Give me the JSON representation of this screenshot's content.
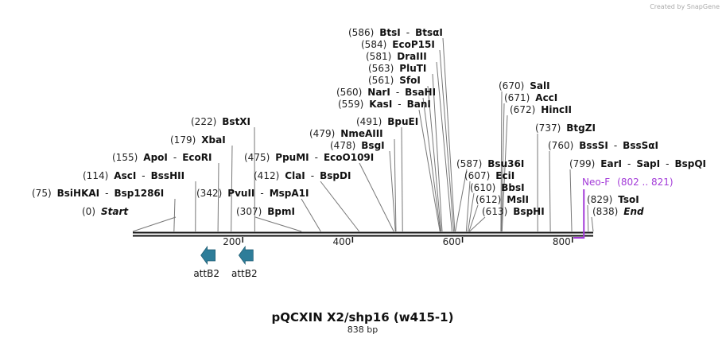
{
  "credit": "Created by SnapGene",
  "map": {
    "title": "pQCXIN X2/shp16 (w415-1)",
    "length_label": "838 bp",
    "length_bp": 838,
    "ticks": [
      "200",
      "400",
      "600",
      "800"
    ]
  },
  "sites": [
    {
      "pos": "(586)",
      "names": [
        "BtsI",
        "BtsαI"
      ],
      "bp": 586
    },
    {
      "pos": "(584)",
      "names": [
        "EcoP15I"
      ],
      "bp": 584
    },
    {
      "pos": "(581)",
      "names": [
        "DraIII"
      ],
      "bp": 581
    },
    {
      "pos": "(563)",
      "names": [
        "PluTI"
      ],
      "bp": 563
    },
    {
      "pos": "(561)",
      "names": [
        "SfoI"
      ],
      "bp": 561
    },
    {
      "pos": "(560)",
      "names": [
        "NarI",
        "BsaHI"
      ],
      "bp": 560
    },
    {
      "pos": "(559)",
      "names": [
        "KasI",
        "BanI"
      ],
      "bp": 559
    },
    {
      "pos": "(222)",
      "names": [
        "BstXI"
      ],
      "bp": 222
    },
    {
      "pos": "(491)",
      "names": [
        "BpuEI"
      ],
      "bp": 491
    },
    {
      "pos": "(479)",
      "names": [
        "NmeAIII"
      ],
      "bp": 479
    },
    {
      "pos": "(478)",
      "names": [
        "BsgI"
      ],
      "bp": 478
    },
    {
      "pos": "(179)",
      "names": [
        "XbaI"
      ],
      "bp": 179
    },
    {
      "pos": "(155)",
      "names": [
        "ApoI",
        "EcoRI"
      ],
      "bp": 155
    },
    {
      "pos": "(475)",
      "names": [
        "PpuMI",
        "EcoO109I"
      ],
      "bp": 475
    },
    {
      "pos": "(114)",
      "names": [
        "AscI",
        "BssHII"
      ],
      "bp": 114
    },
    {
      "pos": "(412)",
      "names": [
        "ClaI",
        "BspDI"
      ],
      "bp": 412
    },
    {
      "pos": "(75)",
      "names": [
        "BsiHKAI",
        "Bsp1286I"
      ],
      "bp": 75
    },
    {
      "pos": "(342)",
      "names": [
        "PvuII",
        "MspA1I"
      ],
      "bp": 342
    },
    {
      "pos": "(307)",
      "names": [
        "BpmI"
      ],
      "bp": 307
    },
    {
      "pos": "(0)",
      "names": [
        "Start"
      ],
      "bp": 0,
      "italic": true
    },
    {
      "pos": "(670)",
      "names": [
        "SalI"
      ],
      "bp": 670
    },
    {
      "pos": "(671)",
      "names": [
        "AccI"
      ],
      "bp": 671
    },
    {
      "pos": "(672)",
      "names": [
        "HincII"
      ],
      "bp": 672
    },
    {
      "pos": "(737)",
      "names": [
        "BtgZI"
      ],
      "bp": 737
    },
    {
      "pos": "(760)",
      "names": [
        "BssSI",
        "BssSαI"
      ],
      "bp": 760
    },
    {
      "pos": "(799)",
      "names": [
        "EarI",
        "SapI",
        "BspQI"
      ],
      "bp": 799
    },
    {
      "pos": "(587)",
      "names": [
        "Bsu36I"
      ],
      "bp": 587
    },
    {
      "pos": "(607)",
      "names": [
        "EciI"
      ],
      "bp": 607
    },
    {
      "pos": "(610)",
      "names": [
        "BbsI"
      ],
      "bp": 610
    },
    {
      "pos": "(612)",
      "names": [
        "MslI"
      ],
      "bp": 612
    },
    {
      "pos": "(613)",
      "names": [
        "BspHI"
      ],
      "bp": 613
    },
    {
      "pos": "(829)",
      "names": [
        "TsoI"
      ],
      "bp": 829
    },
    {
      "pos": "(838)",
      "names": [
        "End"
      ],
      "bp": 838,
      "italic": true
    }
  ],
  "primer": {
    "name": "Neo-F",
    "range": "(802 .. 821)",
    "start_bp": 802,
    "end_bp": 821,
    "color": "#a33bd8"
  },
  "features": [
    {
      "name": "attB2",
      "direction": "left",
      "bp": 137,
      "color": "#2e7d99"
    },
    {
      "name": "attB2",
      "direction": "left",
      "bp": 206,
      "color": "#2e7d99"
    }
  ]
}
